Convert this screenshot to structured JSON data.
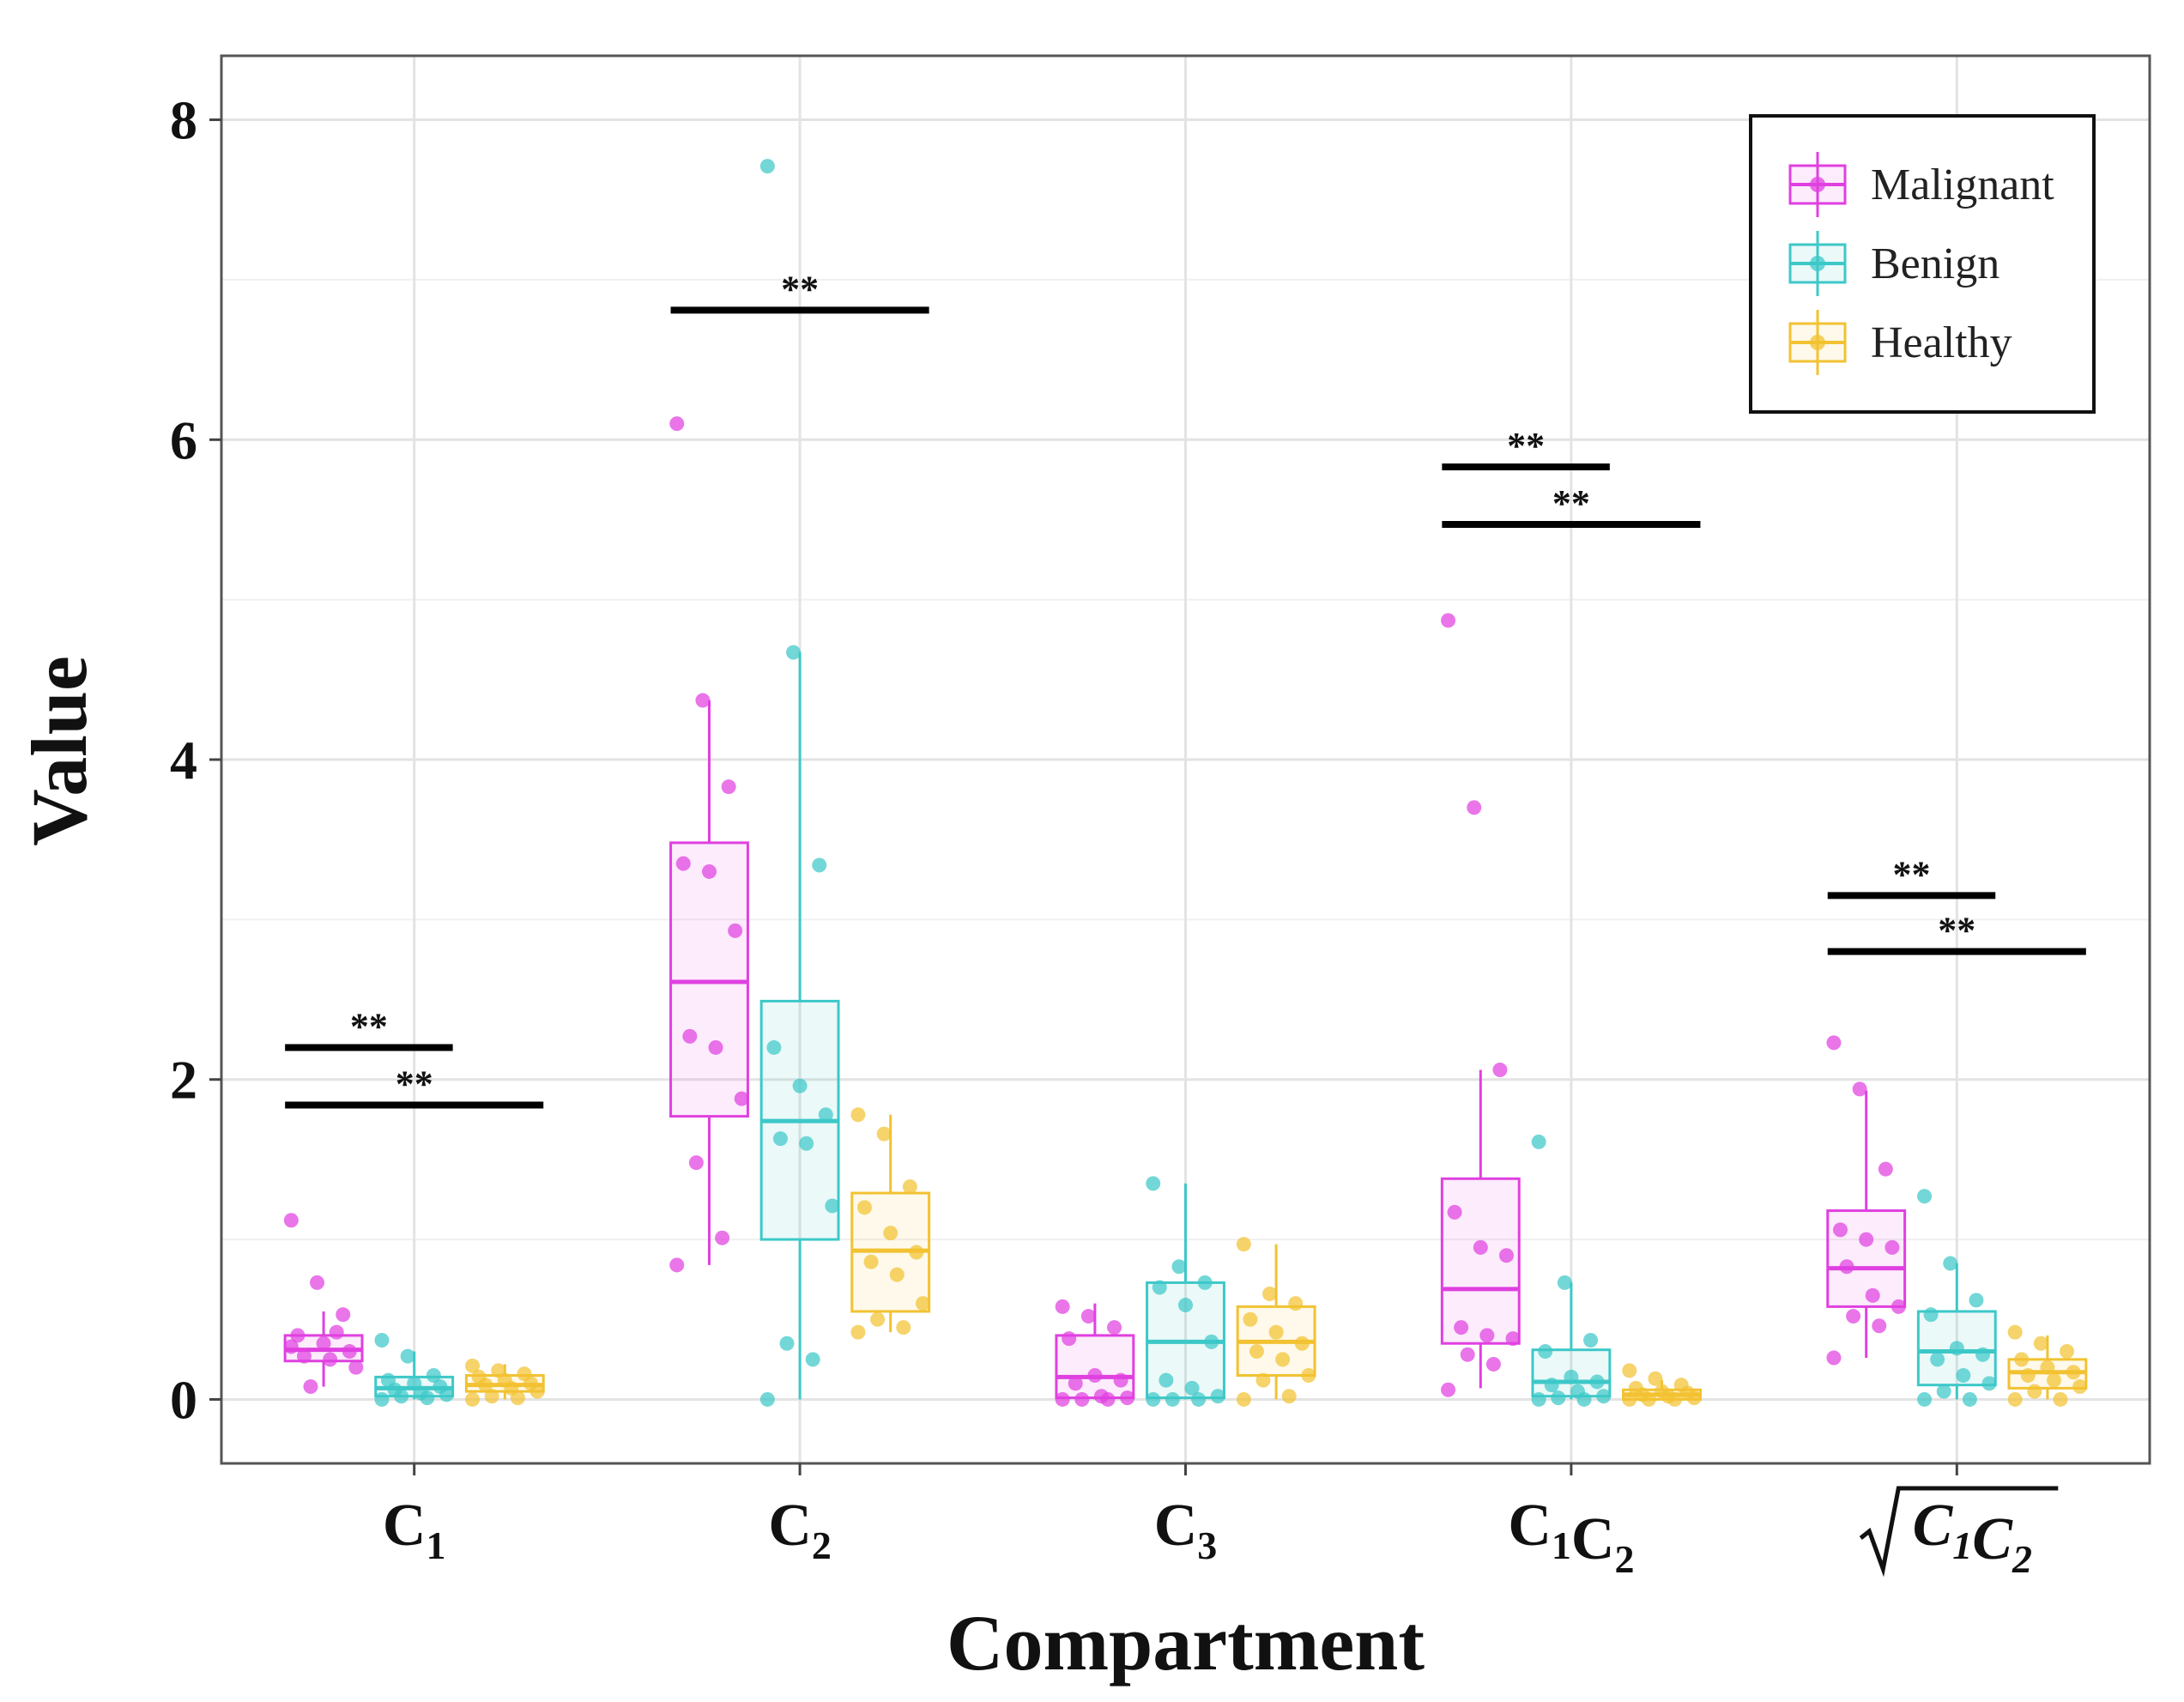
{
  "chart_data": {
    "type": "boxplot",
    "xlabel": "Compartment",
    "ylabel": "Value",
    "ylim": [
      -0.4,
      8.4
    ],
    "yticks": [
      0,
      2,
      4,
      6,
      8
    ],
    "grid": true,
    "legend_position": "top-right",
    "categories": [
      {
        "main": "C",
        "subs": [
          "1"
        ]
      },
      {
        "main": "C",
        "subs": [
          "2"
        ]
      },
      {
        "main": "C",
        "subs": [
          "3"
        ]
      },
      {
        "main": "C",
        "subs": [
          "1",
          "2"
        ]
      },
      {
        "main": "C",
        "subs": [
          "1",
          "2"
        ],
        "sqrt": true
      }
    ],
    "series": [
      {
        "name": "Malignant",
        "color": "#E040E0",
        "boxes": [
          {
            "q1": 0.24,
            "median": 0.31,
            "q3": 0.4,
            "whisker_low": 0.08,
            "whisker_high": 0.55,
            "points": [
              1.12,
              0.73,
              0.53,
              0.4,
              0.35,
              0.3,
              0.27,
              0.25,
              0.2,
              0.08,
              0.42,
              0.33
            ]
          },
          {
            "q1": 1.77,
            "median": 2.61,
            "q3": 3.48,
            "whisker_low": 0.84,
            "whisker_high": 4.37,
            "points": [
              6.1,
              4.37,
              3.83,
              3.35,
              3.3,
              2.93,
              2.27,
              2.2,
              1.88,
              1.48,
              1.01,
              0.84
            ]
          },
          {
            "q1": 0.01,
            "median": 0.14,
            "q3": 0.4,
            "whisker_low": 0.0,
            "whisker_high": 0.6,
            "points": [
              0.58,
              0.52,
              0.45,
              0.38,
              0.15,
              0.12,
              0.1,
              0.02,
              0.01,
              0.0,
              0.0,
              0.0
            ]
          },
          {
            "q1": 0.35,
            "median": 0.69,
            "q3": 1.38,
            "whisker_low": 0.07,
            "whisker_high": 2.06,
            "points": [
              4.87,
              3.7,
              2.06,
              1.17,
              0.95,
              0.9,
              0.45,
              0.4,
              0.38,
              0.28,
              0.22,
              0.06
            ]
          },
          {
            "q1": 0.58,
            "median": 0.82,
            "q3": 1.18,
            "whisker_low": 0.26,
            "whisker_high": 1.93,
            "points": [
              2.23,
              1.94,
              1.44,
              1.06,
              1.0,
              0.95,
              0.83,
              0.65,
              0.58,
              0.52,
              0.46,
              0.26
            ]
          }
        ]
      },
      {
        "name": "Benign",
        "color": "#3DC8C8",
        "boxes": [
          {
            "q1": 0.02,
            "median": 0.07,
            "q3": 0.14,
            "whisker_low": 0.0,
            "whisker_high": 0.3,
            "points": [
              0.37,
              0.27,
              0.15,
              0.12,
              0.1,
              0.08,
              0.06,
              0.04,
              0.03,
              0.02,
              0.01,
              0.0
            ]
          },
          {
            "q1": 1.0,
            "median": 1.74,
            "q3": 2.49,
            "whisker_low": 0.0,
            "whisker_high": 4.67,
            "points": [
              7.71,
              4.67,
              3.34,
              2.2,
              1.96,
              1.78,
              1.63,
              1.6,
              1.21,
              0.35,
              0.25,
              0.0
            ]
          },
          {
            "q1": 0.01,
            "median": 0.36,
            "q3": 0.73,
            "whisker_low": 0.0,
            "whisker_high": 1.35,
            "points": [
              1.35,
              0.83,
              0.73,
              0.7,
              0.59,
              0.36,
              0.12,
              0.07,
              0.02,
              0.0,
              0.0,
              0.0
            ]
          },
          {
            "q1": 0.02,
            "median": 0.11,
            "q3": 0.31,
            "whisker_low": 0.0,
            "whisker_high": 0.73,
            "points": [
              1.61,
              0.73,
              0.37,
              0.3,
              0.14,
              0.11,
              0.09,
              0.05,
              0.02,
              0.01,
              0.0,
              0.0
            ]
          },
          {
            "q1": 0.09,
            "median": 0.3,
            "q3": 0.55,
            "whisker_low": 0.0,
            "whisker_high": 0.85,
            "points": [
              1.27,
              0.85,
              0.62,
              0.53,
              0.32,
              0.28,
              0.25,
              0.15,
              0.1,
              0.05,
              0.0,
              0.0
            ]
          }
        ]
      },
      {
        "name": "Healthy",
        "color": "#F2C232",
        "boxes": [
          {
            "q1": 0.05,
            "median": 0.09,
            "q3": 0.15,
            "whisker_low": 0.0,
            "whisker_high": 0.22,
            "points": [
              0.21,
              0.18,
              0.16,
              0.14,
              0.12,
              0.1,
              0.09,
              0.07,
              0.05,
              0.02,
              0.01,
              0.0
            ]
          },
          {
            "q1": 0.55,
            "median": 0.93,
            "q3": 1.29,
            "whisker_low": 0.42,
            "whisker_high": 1.78,
            "points": [
              1.78,
              1.66,
              1.33,
              1.2,
              1.04,
              0.92,
              0.86,
              0.78,
              0.6,
              0.5,
              0.45,
              0.42
            ]
          },
          {
            "q1": 0.15,
            "median": 0.36,
            "q3": 0.58,
            "whisker_low": 0.0,
            "whisker_high": 0.97,
            "points": [
              0.97,
              0.66,
              0.6,
              0.5,
              0.42,
              0.35,
              0.3,
              0.25,
              0.15,
              0.12,
              0.02,
              0.0
            ]
          },
          {
            "q1": 0.0,
            "median": 0.03,
            "q3": 0.06,
            "whisker_low": 0.0,
            "whisker_high": 0.12,
            "points": [
              0.18,
              0.13,
              0.09,
              0.07,
              0.05,
              0.04,
              0.03,
              0.02,
              0.01,
              0.0,
              0.0,
              0.0
            ]
          },
          {
            "q1": 0.07,
            "median": 0.17,
            "q3": 0.25,
            "whisker_low": 0.0,
            "whisker_high": 0.4,
            "points": [
              0.42,
              0.35,
              0.3,
              0.25,
              0.2,
              0.17,
              0.15,
              0.12,
              0.08,
              0.05,
              0.0,
              0.0
            ]
          }
        ]
      }
    ],
    "significance": [
      {
        "category": 0,
        "from": "Malignant",
        "to": "Benign",
        "y": 2.2,
        "label": "**"
      },
      {
        "category": 0,
        "from": "Malignant",
        "to": "Healthy",
        "y": 1.84,
        "label": "**"
      },
      {
        "category": 1,
        "from": "Malignant",
        "to": "Healthy",
        "y": 6.81,
        "label": "**"
      },
      {
        "category": 3,
        "from": "Malignant",
        "to": "Benign",
        "y": 5.83,
        "label": "**"
      },
      {
        "category": 3,
        "from": "Malignant",
        "to": "Healthy",
        "y": 5.47,
        "label": "**"
      },
      {
        "category": 4,
        "from": "Malignant",
        "to": "Benign",
        "y": 3.15,
        "label": "**"
      },
      {
        "category": 4,
        "from": "Malignant",
        "to": "Healthy",
        "y": 2.8,
        "label": "**"
      }
    ]
  }
}
